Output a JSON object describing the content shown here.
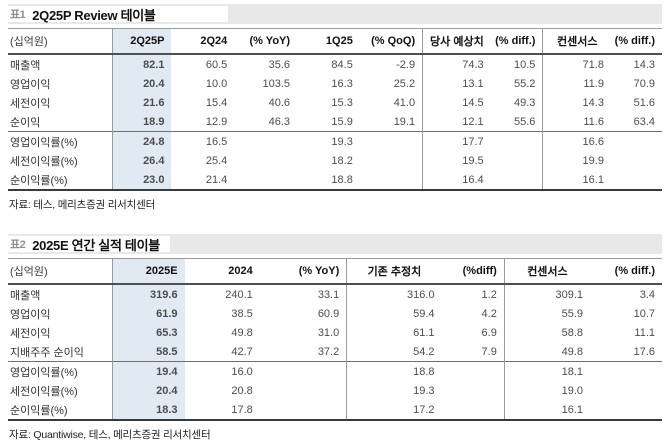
{
  "tables": [
    {
      "tag": "표1",
      "title": "2Q25P Review 테이블",
      "unit": "(십억원)",
      "columns": [
        "2Q25P",
        "2Q24",
        "(% YoY)",
        "1Q25",
        "(% QoQ)",
        "당사 예상치",
        "(% diff.)",
        "컨센서스",
        "(% diff.)"
      ],
      "rows": [
        {
          "label": "매출액",
          "section": false,
          "values": [
            "82.1",
            "60.5",
            "35.6",
            "84.5",
            "-2.9",
            "74.3",
            "10.5",
            "71.8",
            "14.3"
          ]
        },
        {
          "label": "영업이익",
          "section": false,
          "values": [
            "20.4",
            "10.0",
            "103.5",
            "16.3",
            "25.2",
            "13.1",
            "55.2",
            "11.9",
            "70.9"
          ]
        },
        {
          "label": "세전이익",
          "section": false,
          "values": [
            "21.6",
            "15.4",
            "40.6",
            "15.3",
            "41.0",
            "14.5",
            "49.3",
            "14.3",
            "51.6"
          ]
        },
        {
          "label": "순이익",
          "section": false,
          "values": [
            "18.9",
            "12.9",
            "46.3",
            "15.9",
            "19.1",
            "12.1",
            "55.6",
            "11.6",
            "63.4"
          ]
        },
        {
          "label": "영업이익률(%)",
          "section": true,
          "values": [
            "24.8",
            "16.5",
            "",
            "19.3",
            "",
            "17.7",
            "",
            "16.6",
            ""
          ]
        },
        {
          "label": "세전이익률(%)",
          "section": false,
          "values": [
            "26.4",
            "25.4",
            "",
            "18.2",
            "",
            "19.5",
            "",
            "19.9",
            ""
          ]
        },
        {
          "label": "순이익률(%)",
          "section": false,
          "values": [
            "23.0",
            "21.4",
            "",
            "18.8",
            "",
            "16.4",
            "",
            "16.1",
            ""
          ]
        }
      ],
      "source": "자료: 테스, 메리츠증권 리서치센터"
    },
    {
      "tag": "표2",
      "title": "2025E 연간 실적 테이블",
      "unit": "(십억원)",
      "columns": [
        "2025E",
        "2024",
        "(% YoY)",
        "기존 추정치",
        "(%diff)",
        "컨센서스",
        "(% diff.)"
      ],
      "rows": [
        {
          "label": "매출액",
          "section": false,
          "values": [
            "319.6",
            "240.1",
            "33.1",
            "316.0",
            "1.2",
            "309.1",
            "3.4"
          ]
        },
        {
          "label": "영업이익",
          "section": false,
          "values": [
            "61.9",
            "38.5",
            "60.9",
            "59.4",
            "4.2",
            "55.9",
            "10.7"
          ]
        },
        {
          "label": "세전이익",
          "section": false,
          "values": [
            "65.3",
            "49.8",
            "31.0",
            "61.1",
            "6.9",
            "58.8",
            "11.1"
          ]
        },
        {
          "label": "지배주주 순이익",
          "section": false,
          "values": [
            "58.5",
            "42.7",
            "37.2",
            "54.2",
            "7.9",
            "49.8",
            "17.6"
          ]
        },
        {
          "label": "영업이익률(%)",
          "section": true,
          "values": [
            "19.4",
            "16.0",
            "",
            "18.8",
            "",
            "18.1",
            ""
          ]
        },
        {
          "label": "세전이익률(%)",
          "section": false,
          "values": [
            "20.4",
            "20.8",
            "",
            "19.3",
            "",
            "19.0",
            ""
          ]
        },
        {
          "label": "순이익률(%)",
          "section": false,
          "values": [
            "18.3",
            "17.8",
            "",
            "17.2",
            "",
            "16.1",
            ""
          ]
        }
      ],
      "source": "자료: Quantiwise, 테스, 메리츠증권 리서치센터"
    }
  ]
}
